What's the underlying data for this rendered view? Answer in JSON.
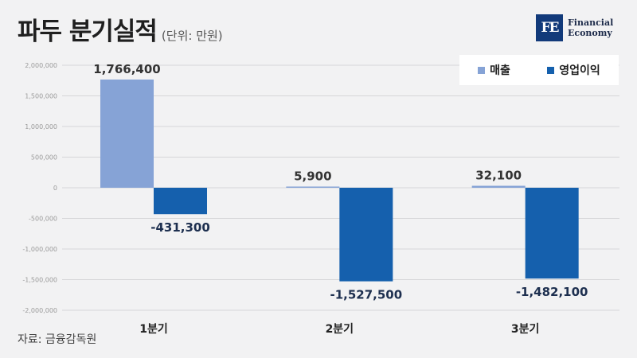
{
  "header": {
    "title": "파두 분기실적",
    "unit": "(단위: 만원)"
  },
  "logo": {
    "mark": "FE",
    "line1": "Financial",
    "line2": "Economy"
  },
  "source": "자료: 금융감독원",
  "chart_data": {
    "type": "bar",
    "categories": [
      "1분기",
      "2분기",
      "3분기"
    ],
    "series": [
      {
        "name": "매출",
        "values": [
          1766400,
          5900,
          32100
        ],
        "labels": [
          "1,766,400",
          "5,900",
          "32,100"
        ],
        "color": "#86a3d6"
      },
      {
        "name": "영업이익",
        "values": [
          -431300,
          -1527500,
          -1482100
        ],
        "labels": [
          "-431,300",
          "-1,527,500",
          "-1,482,100"
        ],
        "color": "#1560ad"
      }
    ],
    "ylim": [
      -2000000,
      2000000
    ],
    "yticks": [
      2000000,
      1500000,
      1000000,
      500000,
      0,
      -500000,
      -1000000,
      -1500000,
      -2000000
    ],
    "ytick_labels": [
      "2,000,000",
      "1,500,000",
      "1,000,000",
      "500,000",
      "0",
      "-500,000",
      "-1,000,000",
      "-1,500,000",
      "-2,000,000"
    ],
    "grid": true,
    "legend": "top-right"
  }
}
